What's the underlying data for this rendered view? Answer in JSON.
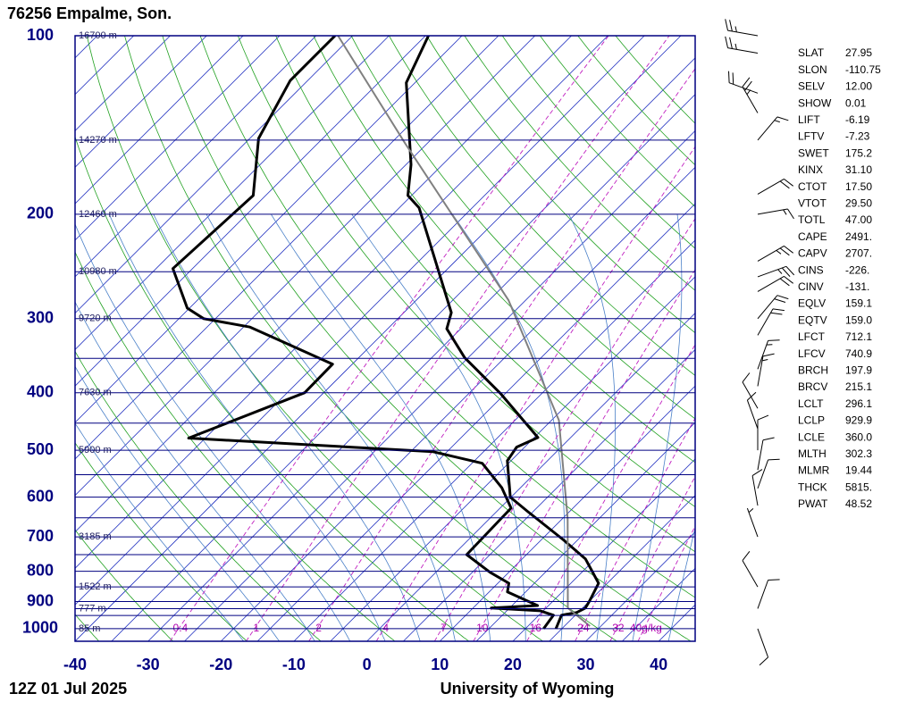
{
  "chart_data": {
    "type": "skewt",
    "title": "76256  Empalme, Son.",
    "footer_left": "12Z 01 Jul 2025",
    "footer_right": "University of Wyoming",
    "xlim": [
      -40,
      45
    ],
    "xticks": [
      -40,
      -30,
      -20,
      -10,
      0,
      10,
      20,
      30,
      40
    ],
    "ylim": [
      1050,
      100
    ],
    "yticks": [
      100,
      200,
      300,
      400,
      500,
      600,
      700,
      800,
      900,
      1000
    ],
    "log_y": true,
    "pressure_lines": [
      100,
      150,
      200,
      250,
      300,
      350,
      400,
      450,
      500,
      550,
      600,
      650,
      700,
      750,
      800,
      850,
      900,
      925,
      950,
      1000,
      1050
    ],
    "heights": [
      {
        "value": 100,
        "label": "16700 m"
      },
      {
        "value": 150,
        "label": "14270 m"
      },
      {
        "value": 200,
        "label": "12460 m"
      },
      {
        "value": 250,
        "label": "10980 m"
      },
      {
        "value": 300,
        "label": "9720 m"
      },
      {
        "value": 400,
        "label": "7630 m"
      },
      {
        "value": 500,
        "label": "5900 m"
      },
      {
        "value": 700,
        "label": "3185 m"
      },
      {
        "value": 850,
        "label": "1522 m"
      },
      {
        "value": 925,
        "label": "777 m"
      },
      {
        "value": 1000,
        "label": "85 m"
      }
    ],
    "mixing_ratios": [
      0.4,
      1,
      2,
      4,
      7,
      10,
      16,
      24,
      32,
      {
        "value": 40,
        "label": "40g/kg"
      }
    ],
    "series": [
      {
        "color": "#000000",
        "line_width": 3,
        "pressure": [
          1000,
          949,
          939,
          923,
          898,
          838,
          763,
          707,
          634,
          600,
          521,
          494,
          476,
          401,
          349,
          312,
          293,
          195,
          186,
          165,
          120,
          100
        ],
        "values": [
          24.2,
          23.1,
          24.8,
          25.4,
          25,
          23.8,
          18.7,
          12.9,
          4.2,
          -0.1,
          -5.5,
          -6.1,
          -4.5,
          -15.7,
          -25.5,
          -31.9,
          -33.5,
          -52.3,
          -55.5,
          -59.3,
          -71.2,
          -74.6
        ]
      },
      {
        "color": "#000000",
        "line_width": 3,
        "pressure": [
          1000,
          949,
          933,
          923,
          914,
          867,
          838,
          803,
          750,
          626,
          578,
          526,
          503,
          477,
          400,
          358,
          310,
          300,
          288,
          247,
          186,
          149,
          119,
          100
        ],
        "values": [
          22.5,
          22,
          19.6,
          12.5,
          18.5,
          12.5,
          11.5,
          7.4,
          1.8,
          1.5,
          -2.6,
          -8.6,
          -16.9,
          -52.3,
          -42.6,
          -42.7,
          -59.1,
          -66.6,
          -70.3,
          -77.7,
          -76.7,
          -83.8,
          -87.4,
          -87.4
        ]
      },
      {
        "color": "#808080",
        "line_width": 2,
        "pressure": [
          990,
          923,
          652,
          445,
          279,
          152,
          100
        ],
        "values": [
          28.5,
          23,
          10.7,
          -4,
          -27.4,
          -63,
          -87
        ]
      }
    ],
    "winds": {
      "pressure": [
        100,
        107,
        125,
        135,
        150,
        185,
        200,
        240,
        255,
        270,
        300,
        320,
        365,
        390,
        425,
        460,
        500,
        540,
        580,
        620,
        700,
        850,
        925,
        1000
      ],
      "direction": [
        280,
        280,
        290,
        330,
        40,
        60,
        80,
        60,
        70,
        60,
        40,
        30,
        20,
        10,
        330,
        340,
        0,
        10,
        20,
        350,
        340,
        330,
        20,
        160
      ],
      "speed": [
        25,
        25,
        20,
        25,
        15,
        20,
        15,
        25,
        25,
        20,
        20,
        20,
        15,
        15,
        10,
        10,
        10,
        10,
        10,
        10,
        5,
        10,
        10,
        10
      ]
    }
  },
  "indices": [
    {
      "name": "SLAT",
      "value": "27.95"
    },
    {
      "name": "SLON",
      "value": "-110.75"
    },
    {
      "name": "SELV",
      "value": "12.00"
    },
    {
      "name": "SHOW",
      "value": "0.01"
    },
    {
      "name": "LIFT",
      "value": "-6.19"
    },
    {
      "name": "LFTV",
      "value": "-7.23"
    },
    {
      "name": "SWET",
      "value": "175.2"
    },
    {
      "name": "KINX",
      "value": "31.10"
    },
    {
      "name": "CTOT",
      "value": "17.50"
    },
    {
      "name": "VTOT",
      "value": "29.50"
    },
    {
      "name": "TOTL",
      "value": "47.00"
    },
    {
      "name": "CAPE",
      "value": "2491."
    },
    {
      "name": "CAPV",
      "value": "2707."
    },
    {
      "name": "CINS",
      "value": "-226."
    },
    {
      "name": "CINV",
      "value": "-131."
    },
    {
      "name": "EQLV",
      "value": "159.1"
    },
    {
      "name": "EQTV",
      "value": "159.0"
    },
    {
      "name": "LFCT",
      "value": "712.1"
    },
    {
      "name": "LFCV",
      "value": "740.9"
    },
    {
      "name": "BRCH",
      "value": "197.9"
    },
    {
      "name": "BRCV",
      "value": "215.1"
    },
    {
      "name": "LCLT",
      "value": "296.1"
    },
    {
      "name": "LCLP",
      "value": "929.9"
    },
    {
      "name": "LCLE",
      "value": "360.0"
    },
    {
      "name": "MLTH",
      "value": "302.3"
    },
    {
      "name": "MLMR",
      "value": "19.44"
    },
    {
      "name": "THCK",
      "value": "5815."
    },
    {
      "name": "PWAT",
      "value": "48.52"
    }
  ]
}
